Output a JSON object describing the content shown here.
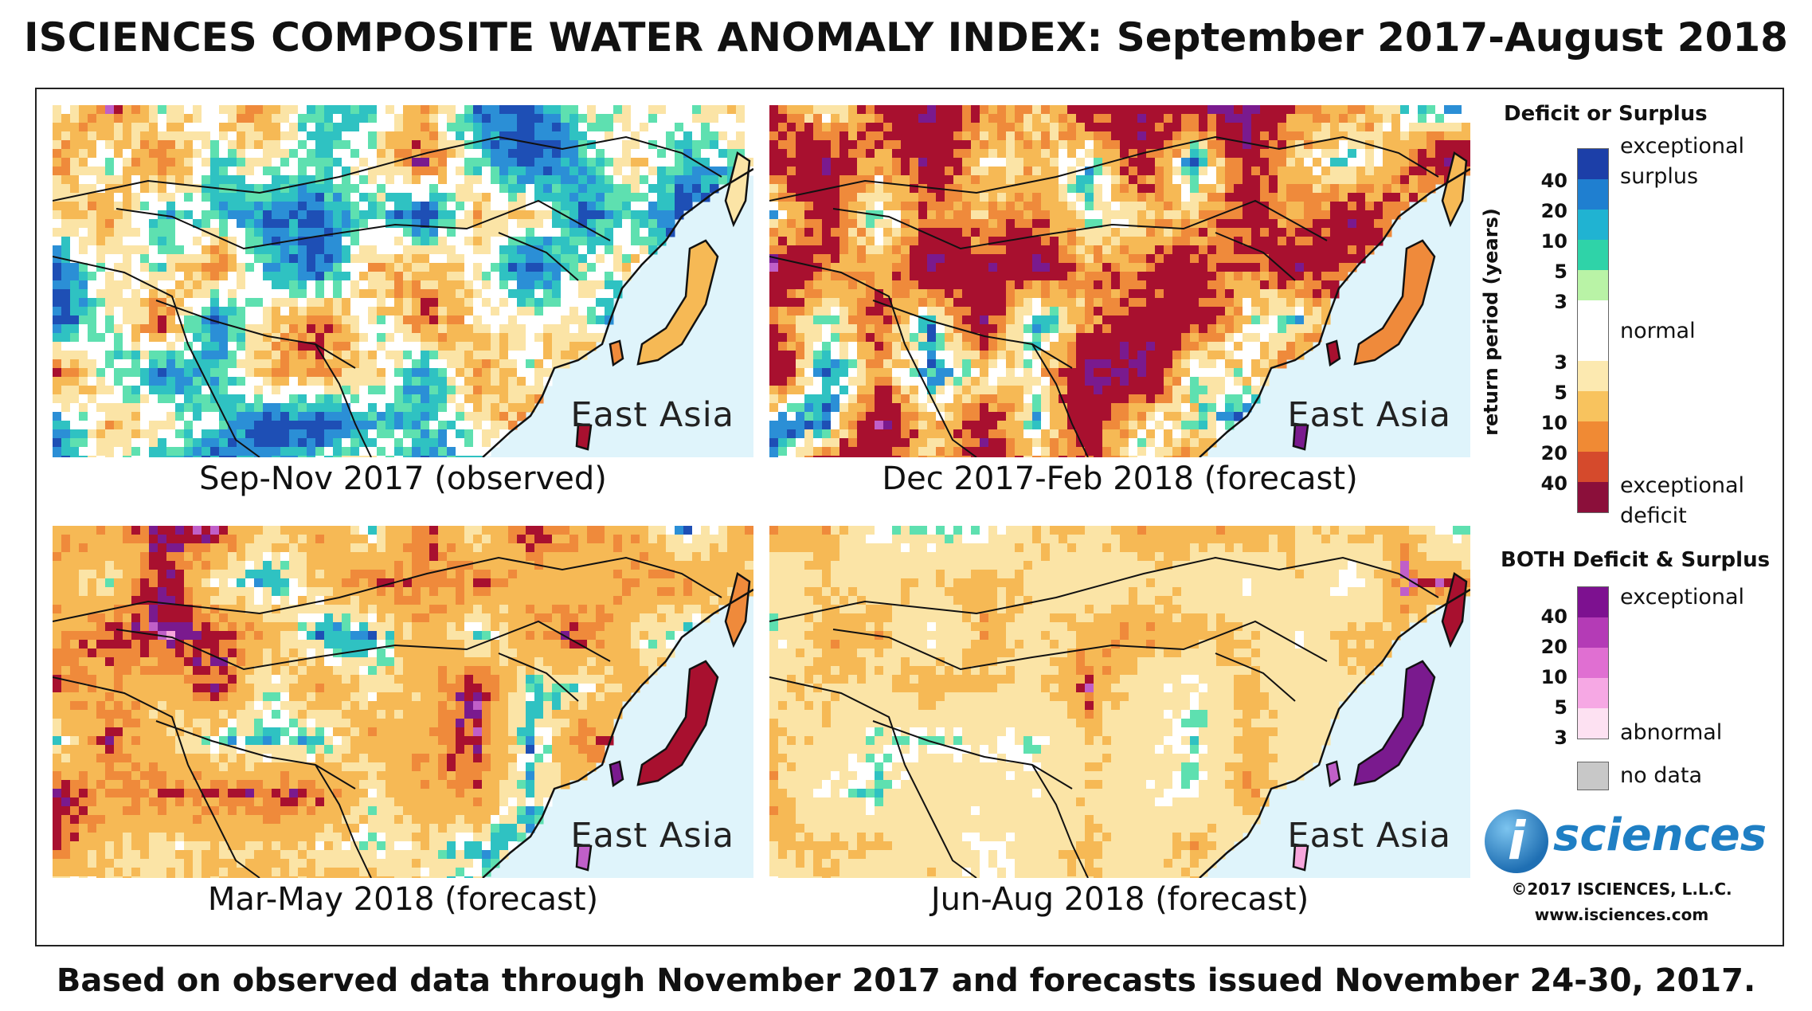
{
  "title": "ISCIENCES COMPOSITE WATER ANOMALY INDEX: September 2017-August 2018",
  "footer": "Based on observed data through November 2017 and forecasts issued November 24-30, 2017.",
  "panels": [
    {
      "region": "East Asia",
      "caption": "Sep-Nov 2017 (observed)",
      "palette": [
        "#1e4fb5",
        "#2b8fd6",
        "#2fc2c2",
        "#5ee0b0",
        "#ffffff",
        "#fbe4a6",
        "#f6b955",
        "#ef8a3b",
        "#a8102f",
        "#7a1a8e",
        "#c05fc8",
        "#f7a6dc"
      ],
      "weights": [
        22,
        10,
        9,
        6,
        10,
        10,
        10,
        8,
        6,
        5,
        2,
        2
      ]
    },
    {
      "region": "East Asia",
      "caption": "Dec 2017-Feb 2018 (forecast)",
      "palette": [
        "#1e4fb5",
        "#2b8fd6",
        "#2fc2c2",
        "#5ee0b0",
        "#ffffff",
        "#fbe4a6",
        "#f6b955",
        "#ef8a3b",
        "#a8102f",
        "#7a1a8e",
        "#c05fc8",
        "#f7a6dc"
      ],
      "weights": [
        12,
        6,
        5,
        4,
        6,
        8,
        10,
        10,
        20,
        12,
        4,
        3
      ]
    },
    {
      "region": "East Asia",
      "caption": "Mar-May 2018 (forecast)",
      "palette": [
        "#1e4fb5",
        "#2b8fd6",
        "#2fc2c2",
        "#5ee0b0",
        "#ffffff",
        "#fbe4a6",
        "#f6b955",
        "#ef8a3b",
        "#a8102f",
        "#7a1a8e",
        "#c05fc8",
        "#f7a6dc"
      ],
      "weights": [
        5,
        6,
        8,
        4,
        4,
        14,
        22,
        12,
        8,
        8,
        4,
        5
      ]
    },
    {
      "region": "East Asia",
      "caption": "Jun-Aug 2018 (forecast)",
      "palette": [
        "#1e4fb5",
        "#2b8fd6",
        "#2fc2c2",
        "#5ee0b0",
        "#ffffff",
        "#fbe4a6",
        "#f6b955",
        "#ef8a3b",
        "#a8102f",
        "#7a1a8e",
        "#c05fc8",
        "#f7a6dc"
      ],
      "weights": [
        2,
        3,
        7,
        6,
        8,
        34,
        20,
        6,
        3,
        2,
        3,
        6
      ]
    }
  ],
  "legend": {
    "deficit_surplus_title": "Deficit or Surplus",
    "axis_label": "return period (years)",
    "surplus_colors": [
      "#1c3fa8",
      "#1f7fd0",
      "#20b3d2",
      "#2fd3a8",
      "#b9f3a6"
    ],
    "normal_color": "#ffffff",
    "deficit_colors": [
      "#fce9b0",
      "#f8c35e",
      "#f08a34",
      "#d54a2c",
      "#8b0f3a"
    ],
    "surplus_ticks": [
      "40",
      "20",
      "10",
      "5",
      "3"
    ],
    "deficit_ticks": [
      "3",
      "5",
      "10",
      "20",
      "40"
    ],
    "label_exceptional_surplus": [
      "exceptional",
      "surplus"
    ],
    "label_normal": "normal",
    "label_exceptional_deficit": [
      "exceptional",
      "deficit"
    ],
    "both_title": "BOTH Deficit & Surplus",
    "both_colors": [
      "#7d1190",
      "#b43bb6",
      "#e06fd2",
      "#f6a8e4",
      "#fde1f2"
    ],
    "both_ticks": [
      "40",
      "20",
      "10",
      "5",
      "3"
    ],
    "label_both_exceptional": "exceptional",
    "label_both_abnormal": "abnormal",
    "nodata_color": "#c8c8c8",
    "label_nodata": "no data"
  },
  "logo": {
    "letter": "i",
    "text": "sciences"
  },
  "copyright": "©2017 ISCIENCES, L.L.C.",
  "website": "www.isciences.com"
}
